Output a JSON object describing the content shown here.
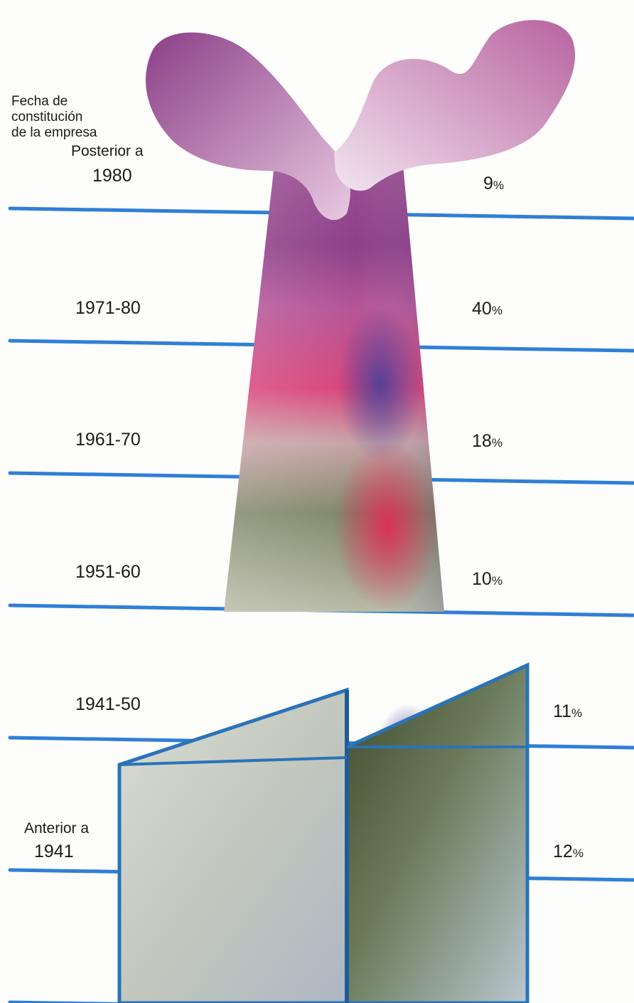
{
  "chart_data": {
    "type": "bar",
    "title_lines": [
      "Fecha de",
      "constitución",
      "de la empresa"
    ],
    "categories": [
      {
        "prefix": "Posterior a",
        "label": "1980"
      },
      {
        "prefix": "",
        "label": "1971-80"
      },
      {
        "prefix": "",
        "label": "1961-70"
      },
      {
        "prefix": "",
        "label": "1951-60"
      },
      {
        "prefix": "",
        "label": "1941-50"
      },
      {
        "prefix": "Anterior a",
        "label": "1941"
      }
    ],
    "values": [
      9,
      40,
      18,
      10,
      11,
      12
    ],
    "value_labels": [
      "9",
      "40",
      "18",
      "10",
      "11",
      "12"
    ],
    "unit": "%",
    "colors": {
      "grid_line": "#2f7fd6",
      "chimney_top": "#8a3f86",
      "chimney_mid": "#d93a6b",
      "chimney_bottom": "#7f8a6a",
      "smoke": "#c889bf",
      "factory_outline": "#2a73b8"
    },
    "legend": "none",
    "grid": true
  }
}
